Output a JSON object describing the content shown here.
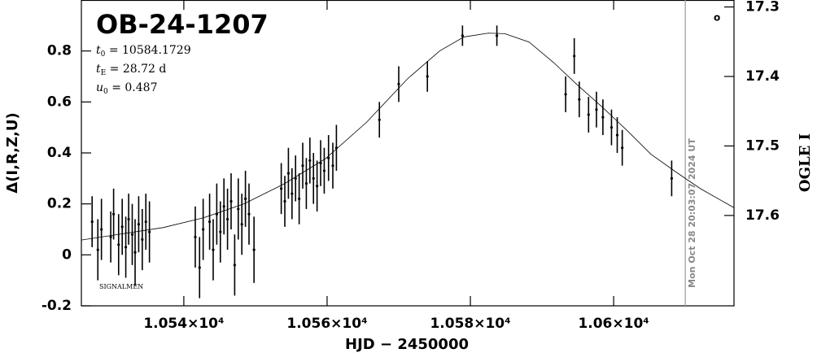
{
  "chart_data": {
    "type": "scatter",
    "title": "OB-24-1207",
    "params": [
      {
        "symbol": "t",
        "sub": "0",
        "text": " = 10584.1729"
      },
      {
        "symbol": "t",
        "sub": "E",
        "text": " = 28.72 d"
      },
      {
        "symbol": "u",
        "sub": "0",
        "text": " = 0.487"
      }
    ],
    "corner_note": "SIGNALMEN",
    "marker_note": "o",
    "timestamp": "Mon Oct 28 20:03:07 2024 UT",
    "now_line": 10610.0,
    "x_label": "HJD − 2450000",
    "y_label": "Δ(I,R,Z,U)",
    "y2_label": "OGLE I",
    "xlim": [
      10525.7,
      10616.8
    ],
    "ylim": [
      -0.2,
      1.0
    ],
    "y2lim": [
      17.29,
      17.73
    ],
    "xticks": [
      {
        "value": 10540,
        "label": "1.054×10⁴"
      },
      {
        "value": 10560,
        "label": "1.056×10⁴"
      },
      {
        "value": 10580,
        "label": "1.058×10⁴"
      },
      {
        "value": 10600,
        "label": "1.06×10⁴"
      }
    ],
    "yticks": [
      -0.2,
      0,
      0.2,
      0.4,
      0.6,
      0.8
    ],
    "y2ticks": [
      17.3,
      17.4,
      17.5,
      17.6
    ],
    "color": "#000000",
    "model_color": "#000000",
    "points": {
      "x": [
        10527.2,
        10528.0,
        10528.5,
        10529.8,
        10530.2,
        10530.9,
        10531.4,
        10531.9,
        10532.3,
        10532.8,
        10533.2,
        10533.7,
        10534.2,
        10534.7,
        10535.2,
        10541.6,
        10542.2,
        10542.7,
        10543.6,
        10544.1,
        10544.6,
        10545.1,
        10545.6,
        10546.1,
        10546.6,
        10547.1,
        10547.6,
        10548.1,
        10548.6,
        10549.1,
        10549.8,
        10553.6,
        10554.1,
        10554.6,
        10555.1,
        10555.6,
        10556.1,
        10556.6,
        10557.1,
        10557.6,
        10558.1,
        10558.6,
        10559.1,
        10559.6,
        10560.2,
        10560.8,
        10561.3,
        10567.3,
        10570.0,
        10574.0,
        10578.9,
        10583.7,
        10593.3,
        10594.5,
        10595.2,
        10596.5,
        10597.6,
        10598.5,
        10599.7,
        10600.5,
        10601.2,
        10608.1
      ],
      "y": [
        0.13,
        0.02,
        0.1,
        0.07,
        0.16,
        0.04,
        0.11,
        0.03,
        0.14,
        0.08,
        0.01,
        0.12,
        0.06,
        0.13,
        0.09,
        0.07,
        -0.05,
        0.1,
        0.13,
        0.02,
        0.16,
        0.09,
        0.19,
        0.14,
        0.21,
        -0.04,
        0.18,
        0.12,
        0.22,
        0.16,
        0.02,
        0.26,
        0.21,
        0.32,
        0.24,
        0.3,
        0.22,
        0.35,
        0.28,
        0.37,
        0.3,
        0.27,
        0.36,
        0.33,
        0.38,
        0.35,
        0.42,
        0.53,
        0.67,
        0.7,
        0.86,
        0.86,
        0.63,
        0.78,
        0.61,
        0.55,
        0.57,
        0.54,
        0.5,
        0.47,
        0.42,
        0.3
      ],
      "err": [
        0.1,
        0.12,
        0.12,
        0.1,
        0.1,
        0.12,
        0.11,
        0.12,
        0.1,
        0.12,
        0.13,
        0.11,
        0.12,
        0.11,
        0.12,
        0.12,
        0.12,
        0.12,
        0.11,
        0.12,
        0.12,
        0.12,
        0.11,
        0.12,
        0.11,
        0.12,
        0.12,
        0.12,
        0.11,
        0.12,
        0.13,
        0.1,
        0.1,
        0.1,
        0.1,
        0.09,
        0.1,
        0.09,
        0.1,
        0.09,
        0.1,
        0.1,
        0.09,
        0.09,
        0.09,
        0.09,
        0.09,
        0.07,
        0.07,
        0.06,
        0.04,
        0.04,
        0.07,
        0.07,
        0.07,
        0.07,
        0.07,
        0.07,
        0.07,
        0.07,
        0.07,
        0.07
      ]
    },
    "model": {
      "x": [
        10525.7,
        10537.1,
        10542.7,
        10548.4,
        10554.1,
        10559.8,
        10565.5,
        10571.2,
        10575.7,
        10579.1,
        10582.5,
        10584.8,
        10588.2,
        10591.6,
        10595.0,
        10598.4,
        10601.8,
        10605.2,
        10608.7,
        10612.1,
        10616.8
      ],
      "y": [
        0.058,
        0.107,
        0.145,
        0.2,
        0.28,
        0.378,
        0.52,
        0.69,
        0.8,
        0.855,
        0.87,
        0.868,
        0.835,
        0.755,
        0.665,
        0.58,
        0.49,
        0.395,
        0.325,
        0.26,
        0.185
      ]
    }
  }
}
